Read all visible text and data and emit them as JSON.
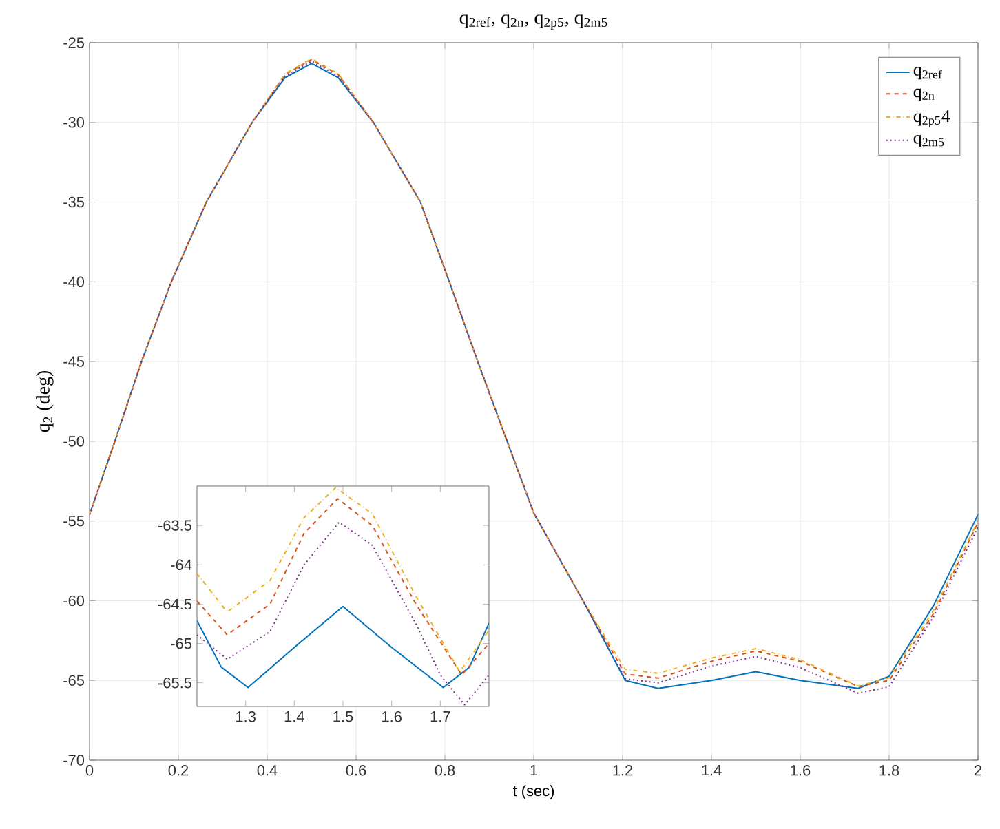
{
  "chart_data": [
    {
      "type": "line",
      "title": "q$_{2ref}$, q$_{2n}$, q$_{2p5}$, q$_{2m5}$",
      "xlabel": "t (sec)",
      "ylabel": "q$_{2}$  (deg)",
      "x": [
        0,
        0.057,
        0.117,
        0.184,
        0.263,
        0.366,
        0.44,
        0.5,
        0.56,
        0.639,
        0.745,
        0.81,
        0.874,
        0.94,
        1.0,
        1.111,
        1.206,
        1.28,
        1.4,
        1.5,
        1.6,
        1.73,
        1.8,
        1.9,
        2.0
      ],
      "xlim": [
        0,
        2
      ],
      "ylim": [
        -70,
        -25
      ],
      "xticks": [
        0,
        0.2,
        0.4,
        0.6,
        0.8,
        1,
        1.2,
        1.4,
        1.6,
        1.8,
        2
      ],
      "yticks": [
        -70,
        -65,
        -60,
        -55,
        -50,
        -45,
        -40,
        -35,
        -30,
        -25
      ],
      "grid": true,
      "legend": "top right",
      "series": [
        {
          "name": "q$_{2ref}$",
          "color": "#0072bd",
          "line_style": "solid",
          "values": [
            -54.6,
            -50,
            -45,
            -40,
            -35,
            -30,
            -27.2,
            -26.3,
            -27.2,
            -30,
            -35,
            -40,
            -45,
            -50,
            -54.5,
            -60,
            -65,
            -65.5,
            -65.0,
            -64.45,
            -65.0,
            -65.5,
            -64.74,
            -60.3,
            -54.6
          ]
        },
        {
          "name": "q$_{2n}$",
          "color": "#d95319",
          "line_style": "dashed",
          "values": [
            -54.6,
            -50,
            -45,
            -40,
            -35,
            -30,
            -27.0,
            -26.05,
            -27.0,
            -30,
            -35,
            -40,
            -45,
            -50,
            -54.5,
            -60,
            -64.6,
            -64.85,
            -63.8,
            -63.15,
            -63.8,
            -65.38,
            -65.0,
            -60.8,
            -55.1
          ]
        },
        {
          "name": "q$_{2p5}$4",
          "color": "#edb120",
          "line_style": "dashdot",
          "values": [
            -54.6,
            -50,
            -45,
            -40,
            -35,
            -30,
            -26.95,
            -26.0,
            -26.95,
            -30,
            -35,
            -40,
            -45,
            -50,
            -54.5,
            -60,
            -64.3,
            -64.55,
            -63.6,
            -63.0,
            -63.7,
            -65.35,
            -64.83,
            -60.6,
            -55.0
          ]
        },
        {
          "name": "q$_{2m5}$",
          "color": "#7e2f8e",
          "line_style": "dotted",
          "values": [
            -54.6,
            -50,
            -45,
            -40,
            -35,
            -30,
            -27.1,
            -26.15,
            -27.1,
            -30,
            -35,
            -40,
            -45,
            -50,
            -54.5,
            -60,
            -64.9,
            -65.15,
            -64.1,
            -63.5,
            -64.2,
            -65.8,
            -65.4,
            -61.0,
            -55.4
          ]
        }
      ]
    },
    {
      "type": "line",
      "xlim": [
        1.2,
        1.8
      ],
      "ylim": [
        -65.8,
        -63
      ],
      "xticks": [
        1.3,
        1.4,
        1.5,
        1.6,
        1.7
      ],
      "yticks": [
        -65.5,
        -65,
        -64.5,
        -64,
        -63.5
      ],
      "series": [
        {
          "color": "#0072bd",
          "line_style": "solid",
          "x": [
            1.2,
            1.25,
            1.305,
            1.4,
            1.5,
            1.6,
            1.706,
            1.76,
            1.8
          ],
          "values": [
            -64.71,
            -65.3,
            -65.56,
            -65.05,
            -64.53,
            -65.05,
            -65.56,
            -65.3,
            -64.74
          ]
        },
        {
          "color": "#d95319",
          "line_style": "dashed",
          "x": [
            1.2,
            1.262,
            1.35,
            1.42,
            1.489,
            1.56,
            1.65,
            1.744,
            1.8
          ],
          "values": [
            -64.46,
            -64.89,
            -64.5,
            -63.6,
            -63.16,
            -63.5,
            -64.5,
            -65.4,
            -65.0
          ]
        },
        {
          "color": "#edb120",
          "line_style": "dashdot",
          "x": [
            1.2,
            1.262,
            1.35,
            1.42,
            1.485,
            1.56,
            1.65,
            1.74,
            1.8
          ],
          "values": [
            -64.11,
            -64.6,
            -64.2,
            -63.4,
            -63.02,
            -63.35,
            -64.4,
            -65.36,
            -64.83
          ]
        },
        {
          "color": "#7e2f8e",
          "line_style": "dotted",
          "x": [
            1.2,
            1.262,
            1.35,
            1.42,
            1.492,
            1.56,
            1.65,
            1.7,
            1.75,
            1.8
          ],
          "values": [
            -64.89,
            -65.2,
            -64.85,
            -64.0,
            -63.46,
            -63.75,
            -64.75,
            -65.4,
            -65.78,
            -65.4
          ]
        }
      ]
    }
  ]
}
